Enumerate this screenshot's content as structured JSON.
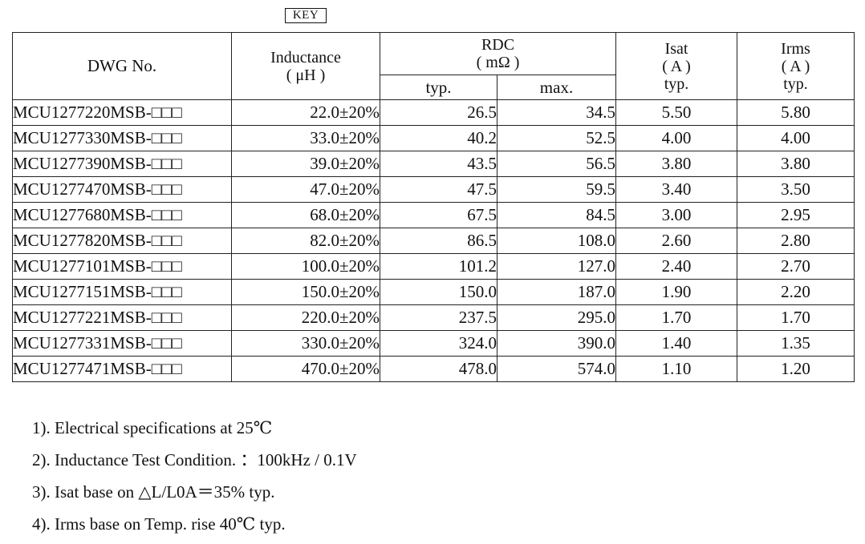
{
  "key_label": "KEY",
  "header": {
    "dwg": "DWG No.",
    "inductance": "Inductance",
    "inductance_unit": "( μH )",
    "rdc": "RDC",
    "rdc_unit": "( mΩ )",
    "rdc_typ": "typ.",
    "rdc_max": "max.",
    "isat": "Isat",
    "isat_unit": "( A )",
    "isat_typ": "typ.",
    "irms": "Irms",
    "irms_unit": "( A )",
    "irms_typ": "typ."
  },
  "rows": [
    {
      "dwg": "MCU1277220MSB-□□□",
      "ind": "22.0±20%",
      "typ": "26.5",
      "max": "34.5",
      "isat": "5.50",
      "irms": "5.80"
    },
    {
      "dwg": "MCU1277330MSB-□□□",
      "ind": "33.0±20%",
      "typ": "40.2",
      "max": "52.5",
      "isat": "4.00",
      "irms": "4.00"
    },
    {
      "dwg": "MCU1277390MSB-□□□",
      "ind": "39.0±20%",
      "typ": "43.5",
      "max": "56.5",
      "isat": "3.80",
      "irms": "3.80"
    },
    {
      "dwg": "MCU1277470MSB-□□□",
      "ind": "47.0±20%",
      "typ": "47.5",
      "max": "59.5",
      "isat": "3.40",
      "irms": "3.50"
    },
    {
      "dwg": "MCU1277680MSB-□□□",
      "ind": "68.0±20%",
      "typ": "67.5",
      "max": "84.5",
      "isat": "3.00",
      "irms": "2.95"
    },
    {
      "dwg": "MCU1277820MSB-□□□",
      "ind": "82.0±20%",
      "typ": "86.5",
      "max": "108.0",
      "isat": "2.60",
      "irms": "2.80"
    },
    {
      "dwg": "MCU1277101MSB-□□□",
      "ind": "100.0±20%",
      "typ": "101.2",
      "max": "127.0",
      "isat": "2.40",
      "irms": "2.70"
    },
    {
      "dwg": "MCU1277151MSB-□□□",
      "ind": "150.0±20%",
      "typ": "150.0",
      "max": "187.0",
      "isat": "1.90",
      "irms": "2.20"
    },
    {
      "dwg": "MCU1277221MSB-□□□",
      "ind": "220.0±20%",
      "typ": "237.5",
      "max": "295.0",
      "isat": "1.70",
      "irms": "1.70"
    },
    {
      "dwg": "MCU1277331MSB-□□□",
      "ind": "330.0±20%",
      "typ": "324.0",
      "max": "390.0",
      "isat": "1.40",
      "irms": "1.35"
    },
    {
      "dwg": "MCU1277471MSB-□□□",
      "ind": "470.0±20%",
      "typ": "478.0",
      "max": "574.0",
      "isat": "1.10",
      "irms": "1.20"
    }
  ],
  "notes": [
    "1). Electrical specifications at 25℃",
    "2). Inductance Test Condition. ：100kHz / 0.1V",
    "3). Isat base on △L/L0A＝35% typ.",
    "4). Irms base on Temp. rise 40℃ typ."
  ]
}
